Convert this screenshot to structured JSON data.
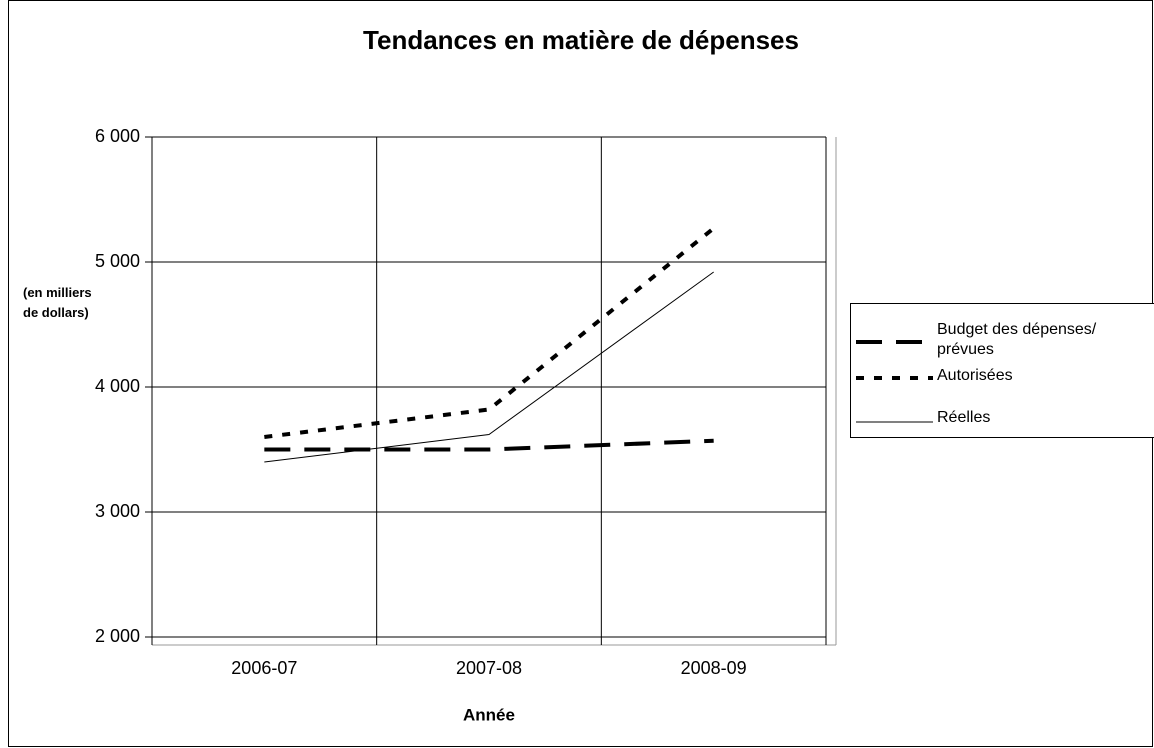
{
  "chart_data": {
    "type": "line",
    "title": "Tendances en matière de dépenses",
    "ylabel": "(en milliers de dollars)",
    "xlabel": "Année",
    "categories": [
      "2006-07",
      "2007-08",
      "2008-09"
    ],
    "series": [
      {
        "name": "Budget des dépenses/ prévues",
        "color": "#000000",
        "line_style": "dashed",
        "line_width": 4,
        "values": [
          3500,
          3500,
          3570
        ]
      },
      {
        "name": "Autorisées",
        "color": "#000000",
        "line_style": "dotted",
        "line_width": 4,
        "values": [
          3600,
          3820,
          5270
        ]
      },
      {
        "name": "Réelles",
        "color": "#000000",
        "line_style": "solid",
        "line_width": 1,
        "values": [
          3400,
          3620,
          4920
        ]
      }
    ],
    "ylim": [
      2000,
      6000
    ],
    "yticks": [
      {
        "value": 2000,
        "label": "2 000"
      },
      {
        "value": 3000,
        "label": "3 000"
      },
      {
        "value": 4000,
        "label": "4 000"
      },
      {
        "value": 5000,
        "label": "5 000"
      },
      {
        "value": 6000,
        "label": "6 000"
      }
    ],
    "grid": true,
    "legend": "right"
  }
}
